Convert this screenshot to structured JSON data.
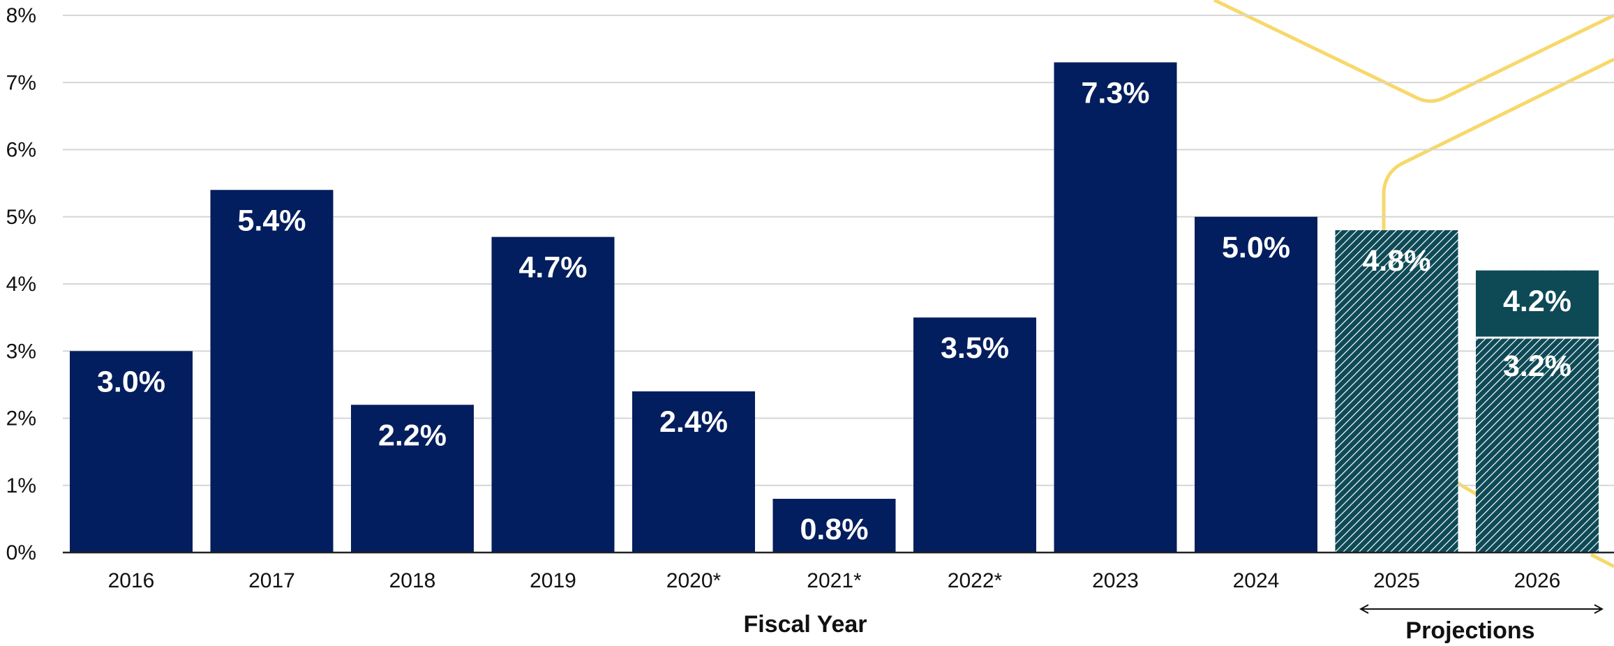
{
  "chart_data": {
    "type": "bar",
    "categories": [
      "2016",
      "2017",
      "2018",
      "2019",
      "2020*",
      "2021*",
      "2022*",
      "2023",
      "2024",
      "2025",
      "2026"
    ],
    "series": [
      {
        "values": [
          3.0,
          5.4,
          2.2,
          4.7,
          2.4,
          0.8,
          3.5,
          7.3,
          5.0,
          4.8,
          4.2
        ],
        "labels": [
          "3.0%",
          "5.4%",
          "2.2%",
          "4.7%",
          "2.4%",
          "0.8%",
          "3.5%",
          "7.3%",
          "5.0%",
          "4.8%",
          "4.2%"
        ]
      }
    ],
    "inner_values": [
      {
        "category": "2026",
        "value": 3.2,
        "label": "3.2%"
      }
    ],
    "projected_categories": [
      "2025",
      "2026"
    ],
    "xlabel": "Fiscal Year",
    "ylabel": "",
    "ylim": [
      0,
      8
    ],
    "yticks": [
      "0%",
      "1%",
      "2%",
      "3%",
      "4%",
      "5%",
      "6%",
      "7%",
      "8%"
    ],
    "grid": true,
    "projection_label": "Projections",
    "colors": {
      "actual": "#031e5e",
      "projected": "#0d4a56",
      "hatch": "#ffffff",
      "grid": "#d6d6d6",
      "axis": "#222222",
      "decoration": "#f7d86a"
    }
  }
}
